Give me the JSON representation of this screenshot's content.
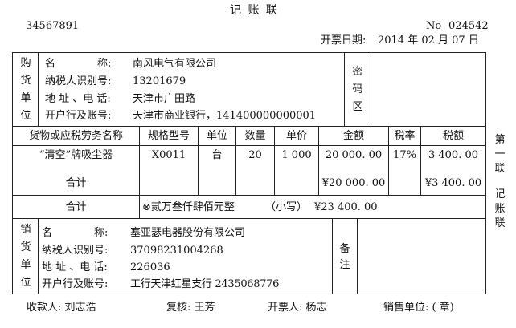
{
  "title": "记 账 联",
  "invoice_code": "34567891",
  "invoice_no_label": "No",
  "invoice_no": "024542",
  "date_label": "开票日期:",
  "date": "2014 年 02 月 07 日",
  "buyer": {
    "section_label": [
      "购",
      "货",
      "单",
      "位"
    ],
    "name_label": "名　　　　称:",
    "name": "南风电气有限公司",
    "taxid_label": "纳税人识别号:",
    "taxid": "13201679",
    "address_label": "地 址 、电 话:",
    "address": "天津市广田路",
    "bank_label": "开户行及账号:",
    "bank": "天津市商业银行，141400000000001",
    "cipher_label": [
      "密",
      "码",
      "区"
    ]
  },
  "items": {
    "headers": [
      "货物或应税劳务名称",
      "规格型号",
      "单位",
      "数量",
      "单价",
      "金额",
      "税率",
      "税额"
    ],
    "rows": [
      [
        "“清空”牌吸尘器",
        "X0011",
        "台",
        "20",
        "1 000",
        "20 000. 00",
        "17%",
        "3 400. 00"
      ]
    ],
    "subtotal_label": "合计",
    "subtotal_amount": "¥20 000. 00",
    "subtotal_tax": "¥3 400. 00"
  },
  "total": {
    "label": "合计",
    "uppercase": "⊗贰万叁仟肆佰元整",
    "lowercase_label": "（小写）",
    "lowercase": "¥23 400. 00"
  },
  "seller": {
    "section_label": [
      "销",
      "货",
      "单",
      "位"
    ],
    "name_label": "名　　　　称:",
    "name": "塞亚瑟电器股份有限公司",
    "taxid_label": "纳税人识别号:",
    "taxid": "37098231004268",
    "address_label": "地 址 、电 话:",
    "address": "226036",
    "bank_label": "开户行及账号:",
    "bank": "工行天津红星支行 2435068776",
    "remark_label": [
      "备",
      "注"
    ]
  },
  "side_label": [
    "第",
    "一",
    "联",
    "",
    "记",
    "账",
    "联"
  ],
  "footer": {
    "payee": "收款人:  刘志浩",
    "reviewer": "复核:  王芳",
    "issuer": "开票人:  杨志",
    "seller_stamp": "销售单位:  ( 章)"
  }
}
